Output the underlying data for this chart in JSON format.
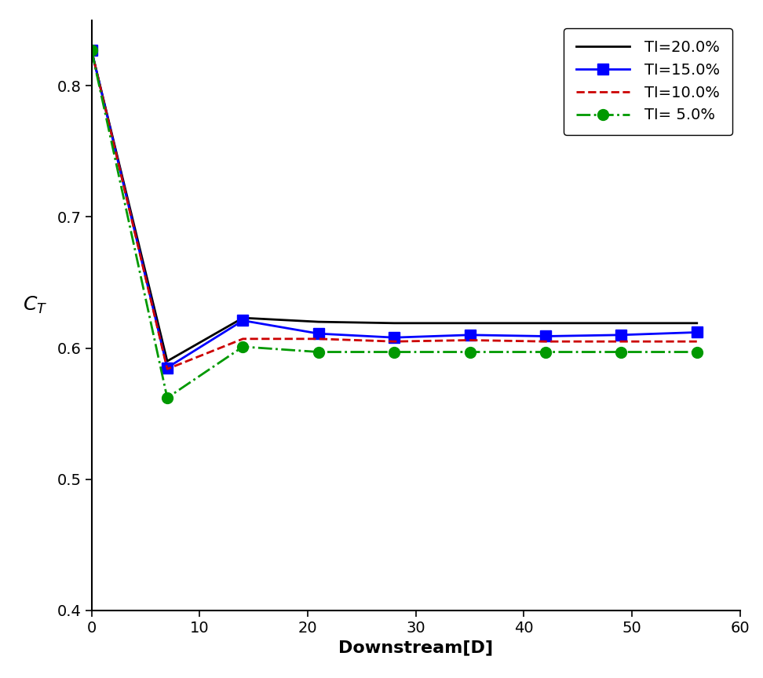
{
  "x": [
    0,
    7,
    14,
    21,
    28,
    35,
    42,
    49,
    56
  ],
  "series": [
    {
      "label": "TI=20.0%",
      "color": "#000000",
      "linestyle": "-",
      "marker": null,
      "markercolor": null,
      "values": [
        0.827,
        0.59,
        0.623,
        0.62,
        0.619,
        0.619,
        0.619,
        0.619,
        0.619
      ]
    },
    {
      "label": "TI=15.0%",
      "color": "#0000FF",
      "linestyle": "-",
      "marker": "s",
      "markercolor": "#0000FF",
      "values": [
        0.827,
        0.585,
        0.621,
        0.611,
        0.608,
        0.61,
        0.609,
        0.61,
        0.612
      ]
    },
    {
      "label": "TI=10.0%",
      "color": "#CC0000",
      "linestyle": "--",
      "marker": null,
      "markercolor": null,
      "values": [
        0.827,
        0.584,
        0.607,
        0.607,
        0.605,
        0.606,
        0.605,
        0.605,
        0.605
      ]
    },
    {
      "label": "TI= 5.0%",
      "color": "#009900",
      "linestyle": "-.",
      "marker": "o",
      "markercolor": "#009900",
      "values": [
        0.827,
        0.562,
        0.601,
        0.597,
        0.597,
        0.597,
        0.597,
        0.597,
        0.597
      ]
    }
  ],
  "xlabel": "Downstream[D]",
  "xlim": [
    0,
    60
  ],
  "ylim": [
    0.4,
    0.85
  ],
  "xticks": [
    0,
    10,
    20,
    30,
    40,
    50,
    60
  ],
  "yticks": [
    0.4,
    0.5,
    0.6,
    0.7,
    0.8
  ],
  "background_color": "#ffffff",
  "linewidth": 2.0,
  "markersize": 10,
  "tick_labelsize": 14,
  "xlabel_fontsize": 16,
  "ylabel_fontsize": 18,
  "legend_fontsize": 14
}
